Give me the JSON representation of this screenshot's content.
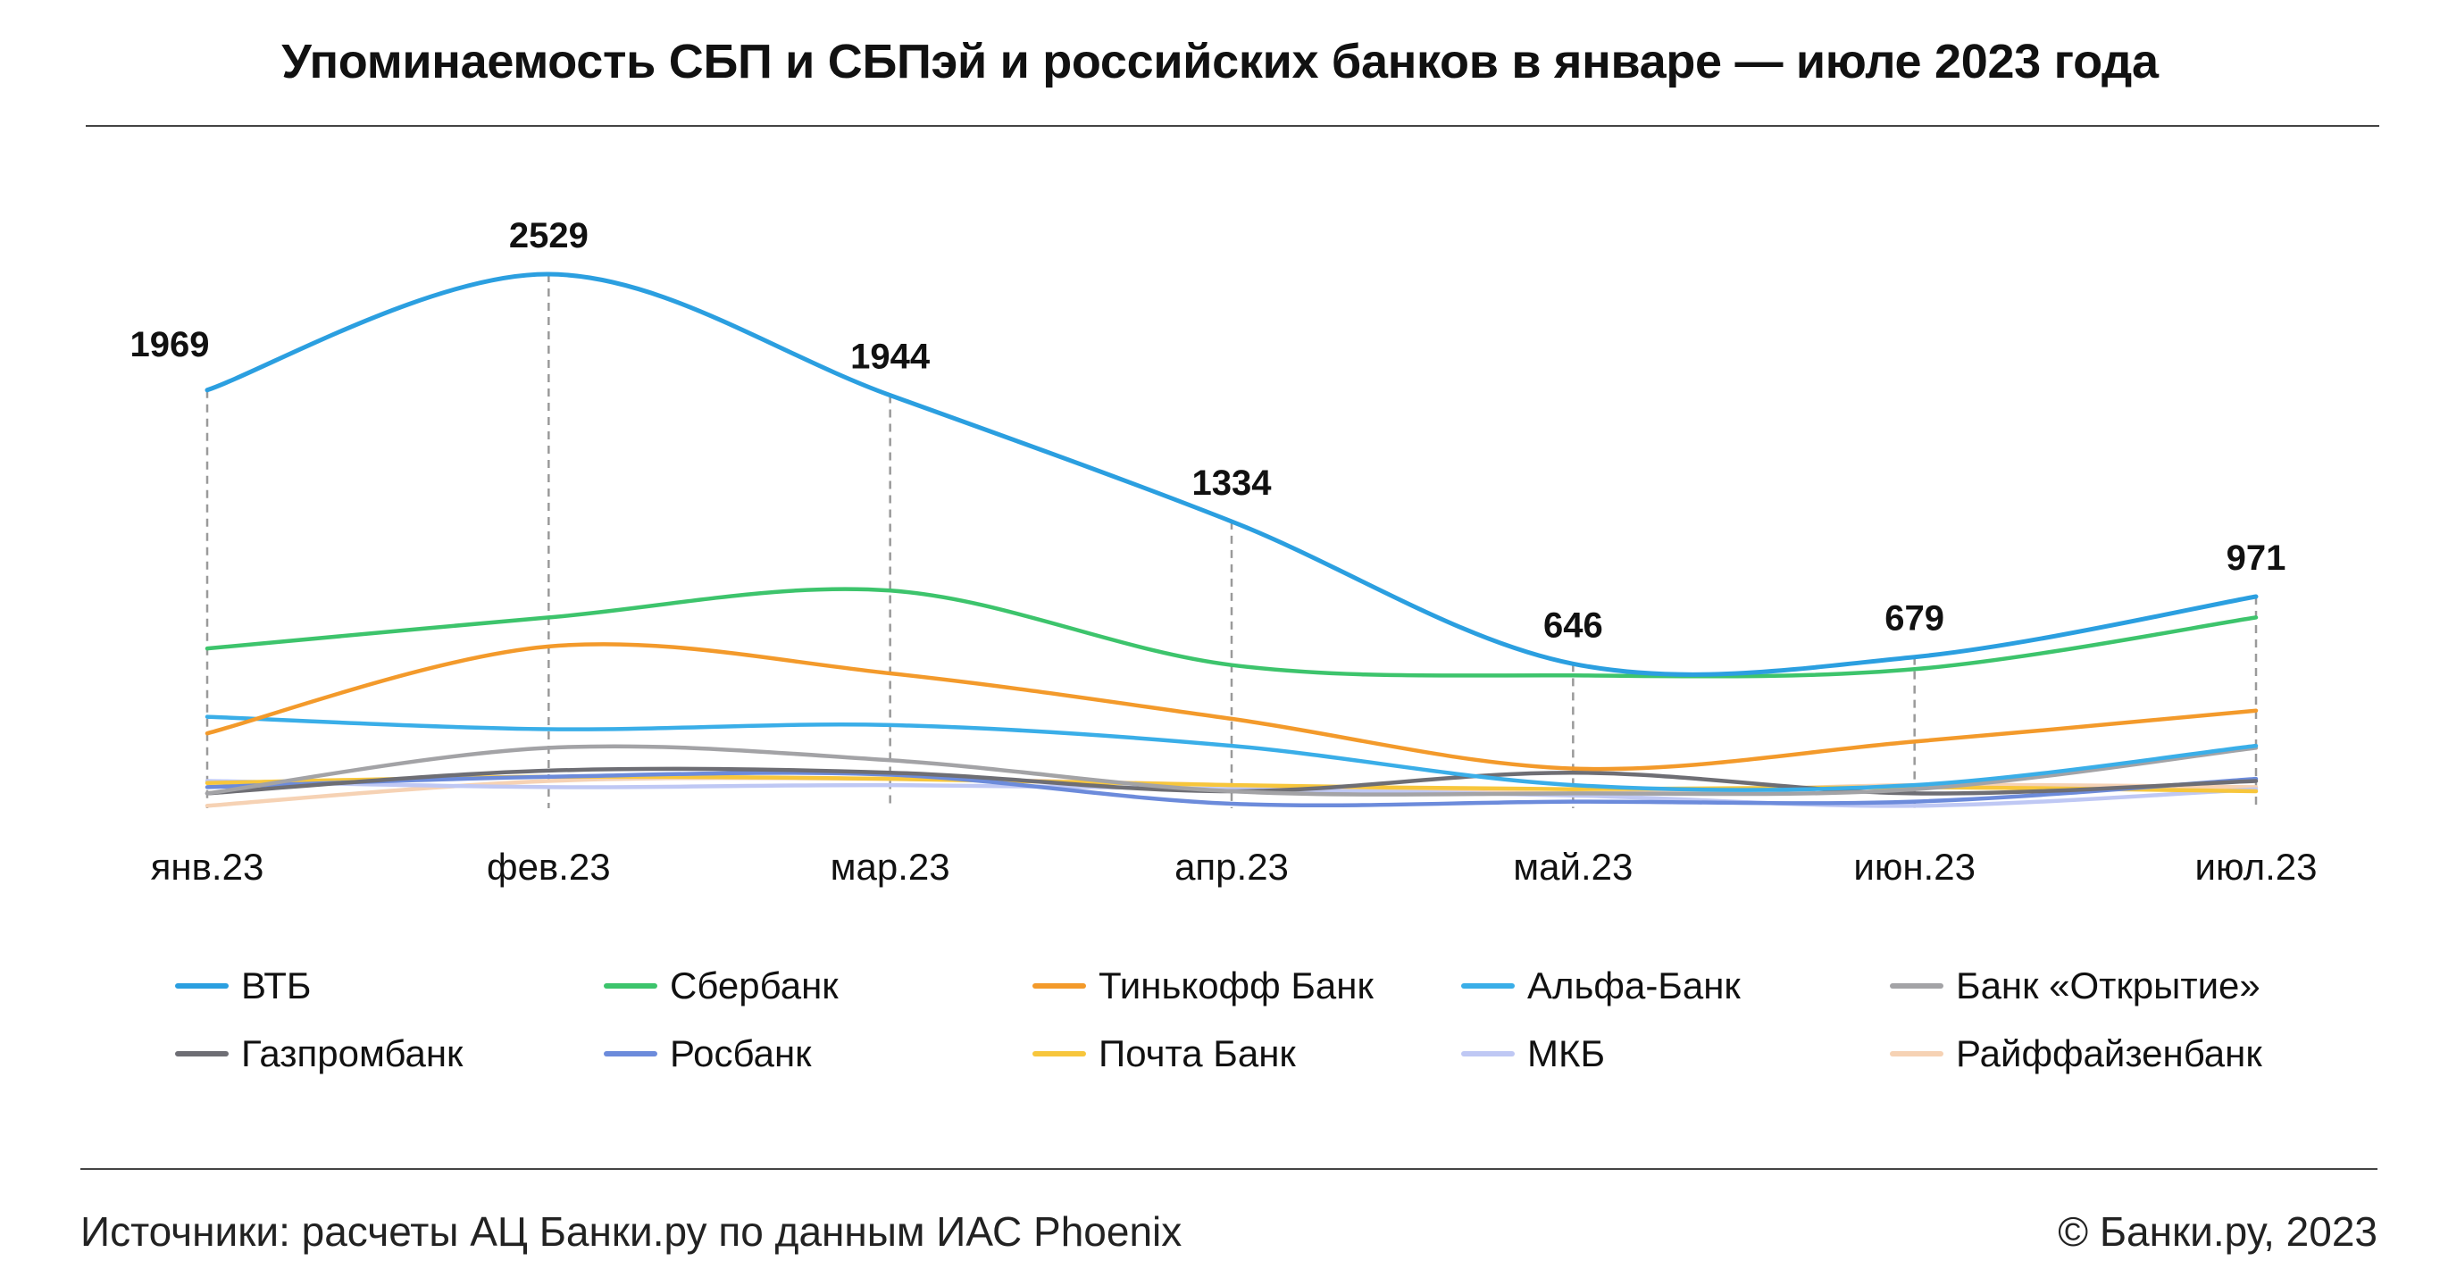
{
  "title": "Упоминаемость СБП и СБПэй и российских банков в январе — июле 2023 года",
  "footer": {
    "source": "Источники: расчеты АЦ Банки.ру по данным ИАС Phoenix",
    "copyright": "© Банки.ру, 2023"
  },
  "chart_data": {
    "type": "line",
    "title": "Упоминаемость СБП и СБПэй и российских банков в январе — июле 2023 года",
    "xlabel": "",
    "ylabel": "",
    "categories": [
      "янв.23",
      "фев.23",
      "мар.23",
      "апр.23",
      "май.23",
      "июн.23",
      "июл.23"
    ],
    "ylim": [
      0,
      2600
    ],
    "grid": "vertical dashed lines at categories",
    "legend_placement": "bottom",
    "series": [
      {
        "name": "ВТБ",
        "color": "#2B9FE0",
        "values": [
          1969,
          2529,
          1944,
          1334,
          646,
          679,
          971
        ],
        "labels": true
      },
      {
        "name": "Сбербанк",
        "color": "#3DC46C",
        "values": [
          720,
          870,
          1000,
          640,
          590,
          620,
          870
        ]
      },
      {
        "name": "Тинькофф Банк",
        "color": "#F39A2B",
        "values": [
          310,
          730,
          600,
          380,
          140,
          270,
          420
        ]
      },
      {
        "name": "Альфа-Банк",
        "color": "#3AAEE8",
        "values": [
          390,
          330,
          350,
          250,
          60,
          60,
          250
        ]
      },
      {
        "name": "Банк «Открытие»",
        "color": "#A3A3A6",
        "values": [
          20,
          240,
          180,
          30,
          20,
          40,
          240
        ]
      },
      {
        "name": "Газпромбанк",
        "color": "#6E6E74",
        "values": [
          20,
          130,
          120,
          30,
          120,
          20,
          80
        ]
      },
      {
        "name": "Росбанк",
        "color": "#6C8BDB",
        "values": [
          50,
          100,
          110,
          -30,
          -20,
          -20,
          90
        ]
      },
      {
        "name": "Почта Банк",
        "color": "#F7C63C",
        "values": [
          70,
          100,
          90,
          60,
          40,
          50,
          30
        ]
      },
      {
        "name": "МКБ",
        "color": "#BFC8F4",
        "values": [
          80,
          50,
          60,
          40,
          10,
          -40,
          40
        ]
      },
      {
        "name": "Райффайзенбанк",
        "color": "#F6D2B4",
        "values": [
          -40,
          80,
          90,
          60,
          20,
          60,
          50
        ]
      }
    ]
  }
}
